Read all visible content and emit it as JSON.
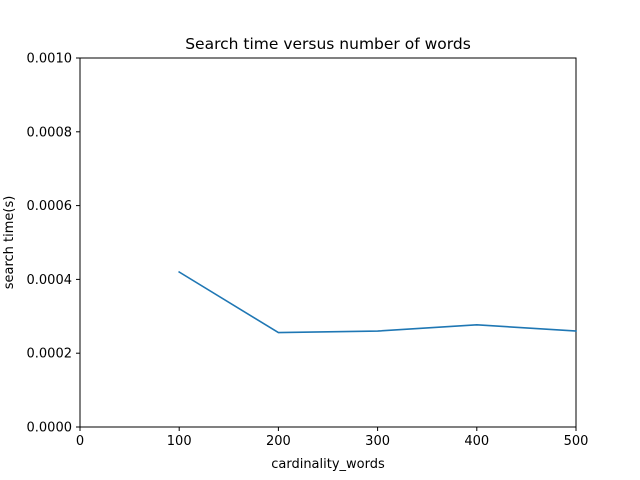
{
  "chart_data": {
    "type": "line",
    "title": "Search time versus number of words",
    "xlabel": "cardinality_words",
    "ylabel": "search time(s)",
    "xlim": [
      0,
      500
    ],
    "ylim": [
      0,
      0.001
    ],
    "x_ticks": [
      0,
      100,
      200,
      300,
      400,
      500
    ],
    "x_tick_labels": [
      "0",
      "100",
      "200",
      "300",
      "400",
      "500"
    ],
    "y_ticks": [
      0,
      0.0002,
      0.0004,
      0.0006,
      0.0008,
      0.001
    ],
    "y_tick_labels": [
      "0.0000",
      "0.0002",
      "0.0004",
      "0.0006",
      "0.0008",
      "0.0010"
    ],
    "grid": false,
    "legend": "none",
    "series": [
      {
        "color": "#1f77b4",
        "x": [
          100,
          200,
          300,
          400,
          500
        ],
        "y": [
          0.00042,
          0.000256,
          0.00026,
          0.000277,
          0.00026
        ]
      }
    ]
  }
}
